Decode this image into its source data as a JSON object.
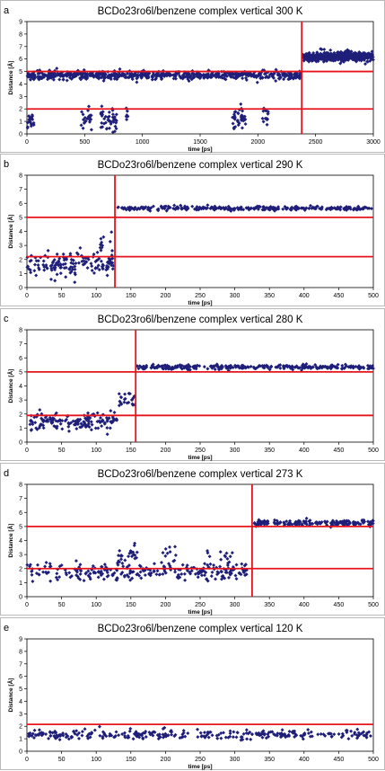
{
  "chart_data": [
    {
      "type": "scatter",
      "panel_letter": "a",
      "title": "BCDo23ro6l/benzene complex vertical 300 K",
      "xlabel": "time [ps]",
      "ylabel": "Distance [Å]",
      "xlim": [
        0,
        3000
      ],
      "ylim": [
        0,
        9
      ],
      "xticks": [
        0,
        500,
        1000,
        1500,
        2000,
        2500,
        3000
      ],
      "yticks": [
        0,
        1,
        2,
        3,
        4,
        5,
        6,
        7,
        8,
        9
      ],
      "hlines": [
        5,
        2
      ],
      "vline": 2380,
      "marker_color": "#1f1f7a",
      "line_color": "#e8141b",
      "segments": [
        {
          "x": [
            0,
            2370
          ],
          "y_center": 4.7,
          "spread": 0.3,
          "count": 650
        },
        {
          "x": [
            2390,
            3000
          ],
          "y_center": 6.2,
          "spread": 0.35,
          "count": 420
        },
        {
          "x": [
            0,
            60
          ],
          "y_center": 1.0,
          "spread": 0.5,
          "count": 20
        },
        {
          "x": [
            470,
            560
          ],
          "y_center": 1.2,
          "spread": 0.8,
          "count": 22
        },
        {
          "x": [
            640,
            780
          ],
          "y_center": 1.1,
          "spread": 0.9,
          "count": 45
        },
        {
          "x": [
            860,
            880
          ],
          "y_center": 1.5,
          "spread": 1.2,
          "count": 8
        },
        {
          "x": [
            1780,
            1900
          ],
          "y_center": 1.1,
          "spread": 0.8,
          "count": 40
        },
        {
          "x": [
            2040,
            2090
          ],
          "y_center": 1.6,
          "spread": 1.0,
          "count": 15
        }
      ]
    },
    {
      "type": "scatter",
      "panel_letter": "b",
      "title": "BCDo23ro6l/benzene complex vertical 290 K",
      "xlabel": "time [ps]",
      "ylabel": "Distance [Å]",
      "xlim": [
        0,
        500
      ],
      "ylim": [
        0,
        8
      ],
      "xticks": [
        0,
        50,
        100,
        150,
        200,
        250,
        300,
        350,
        400,
        450,
        500
      ],
      "yticks": [
        0,
        1,
        2,
        3,
        4,
        5,
        6,
        7,
        8
      ],
      "hlines": [
        5,
        2.2
      ],
      "vline": 127,
      "marker_color": "#1f1f7a",
      "line_color": "#e8141b",
      "segments": [
        {
          "x": [
            0,
            125
          ],
          "y_center": 1.7,
          "spread": 0.8,
          "count": 150
        },
        {
          "x": [
            105,
            125
          ],
          "y_center": 3.2,
          "spread": 0.8,
          "count": 10
        },
        {
          "x": [
            128,
            500
          ],
          "y_center": 5.65,
          "spread": 0.15,
          "count": 280
        }
      ]
    },
    {
      "type": "scatter",
      "panel_letter": "c",
      "title": "BCDo23ro6l/benzene complex vertical 280 K",
      "xlabel": "time [ps]",
      "ylabel": "Distance [Å]",
      "xlim": [
        0,
        500
      ],
      "ylim": [
        0,
        8
      ],
      "xticks": [
        0,
        50,
        100,
        150,
        200,
        250,
        300,
        350,
        400,
        450,
        500
      ],
      "yticks": [
        0,
        1,
        2,
        3,
        4,
        5,
        6,
        7,
        8
      ],
      "hlines": [
        5,
        1.9
      ],
      "vline": 157,
      "marker_color": "#1f1f7a",
      "line_color": "#e8141b",
      "segments": [
        {
          "x": [
            0,
            130
          ],
          "y_center": 1.5,
          "spread": 0.6,
          "count": 150
        },
        {
          "x": [
            130,
            156
          ],
          "y_center": 3.0,
          "spread": 0.5,
          "count": 22
        },
        {
          "x": [
            158,
            500
          ],
          "y_center": 5.35,
          "spread": 0.15,
          "count": 280
        }
      ]
    },
    {
      "type": "scatter",
      "panel_letter": "d",
      "title": "BCDo23ro6l/benzene complex vertical 273 K",
      "xlabel": "time [ps]",
      "ylabel": "Distance [Å]",
      "xlim": [
        0,
        500
      ],
      "ylim": [
        0,
        8
      ],
      "xticks": [
        0,
        50,
        100,
        150,
        200,
        250,
        300,
        350,
        400,
        450,
        500
      ],
      "yticks": [
        0,
        1,
        2,
        3,
        4,
        5,
        6,
        7,
        8
      ],
      "hlines": [
        5,
        2
      ],
      "vline": 325,
      "marker_color": "#1f1f7a",
      "line_color": "#e8141b",
      "segments": [
        {
          "x": [
            0,
            320
          ],
          "y_center": 1.75,
          "spread": 0.55,
          "count": 260
        },
        {
          "x": [
            130,
            160
          ],
          "y_center": 3.0,
          "spread": 0.6,
          "count": 25
        },
        {
          "x": [
            195,
            215
          ],
          "y_center": 3.0,
          "spread": 0.8,
          "count": 10
        },
        {
          "x": [
            260,
            300
          ],
          "y_center": 2.9,
          "spread": 0.5,
          "count": 14
        },
        {
          "x": [
            327,
            500
          ],
          "y_center": 5.25,
          "spread": 0.18,
          "count": 180
        }
      ]
    },
    {
      "type": "scatter",
      "panel_letter": "e",
      "title": "BCDo23ro6l/benzene complex vertical 120 K",
      "xlabel": "time [ps]",
      "ylabel": "Distance [Å]",
      "xlim": [
        0,
        500
      ],
      "ylim": [
        0,
        9
      ],
      "xticks": [
        0,
        50,
        100,
        150,
        200,
        250,
        300,
        350,
        400,
        450,
        500
      ],
      "yticks": [
        0,
        1,
        2,
        3,
        4,
        5,
        6,
        7,
        8,
        9
      ],
      "hlines": [
        2.15
      ],
      "vline": null,
      "marker_color": "#1f1f7a",
      "line_color": "#e8141b",
      "segments": [
        {
          "x": [
            0,
            500
          ],
          "y_center": 1.35,
          "spread": 0.35,
          "count": 300
        }
      ]
    }
  ]
}
